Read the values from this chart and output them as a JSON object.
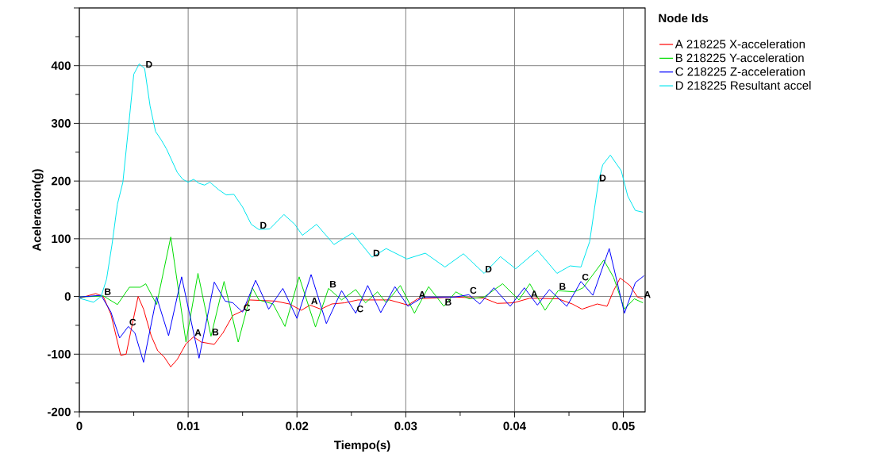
{
  "chart_data": {
    "type": "line",
    "xlabel": "Tiempo(s)",
    "ylabel": "Aceleracion(g)",
    "legend_title": "Node Ids",
    "xlim": [
      0,
      0.052
    ],
    "ylim": [
      -200,
      500
    ],
    "xticks": [
      0,
      0.01,
      0.02,
      0.03,
      0.04,
      0.05
    ],
    "yticks": [
      -200,
      -100,
      0,
      100,
      200,
      300,
      400,
      {
        "value": 500,
        "label": null
      }
    ],
    "grid": true,
    "legend": "top right",
    "line_style": "solid",
    "series": [
      {
        "name": "A 218225 X-acceleration",
        "color": "#ff0000",
        "x": [
          0,
          0.0015,
          0.0022,
          0.0029,
          0.0038,
          0.0043,
          0.0048,
          0.0054,
          0.0059,
          0.0066,
          0.0072,
          0.0078,
          0.0084,
          0.009,
          0.0098,
          0.0105,
          0.0112,
          0.0124,
          0.0132,
          0.0141,
          0.0151,
          0.0156,
          0.0168,
          0.018,
          0.0193,
          0.0204,
          0.0212,
          0.0222,
          0.0232,
          0.0244,
          0.0256,
          0.0285,
          0.0302,
          0.0311,
          0.0345,
          0.0372,
          0.0384,
          0.0399,
          0.0414,
          0.044,
          0.0453,
          0.0462,
          0.0476,
          0.0485,
          0.0491,
          0.0497,
          0.0506,
          0.0513,
          0.0518
        ],
        "values": [
          -3,
          5,
          0,
          -31,
          -102,
          -100,
          -54,
          0,
          -22,
          -68,
          -94,
          -105,
          -122,
          -109,
          -82,
          -70,
          -79,
          -83,
          -63,
          -33,
          -24,
          -6,
          -7,
          -8,
          -13,
          -24,
          -15,
          -22,
          -13,
          -11,
          -6,
          -6,
          -15,
          -4,
          -1,
          -3,
          -12,
          -11,
          -3,
          -4,
          -13,
          -22,
          -13,
          -17,
          10,
          32,
          19,
          -1,
          -4
        ]
      },
      {
        "name": "B 218225 Y-acceleration",
        "color": "#00dd00",
        "x": [
          0,
          0.0022,
          0.0035,
          0.0046,
          0.0056,
          0.0061,
          0.0071,
          0.0084,
          0.0098,
          0.0109,
          0.0121,
          0.0133,
          0.0146,
          0.0159,
          0.0165,
          0.0178,
          0.0189,
          0.0202,
          0.0217,
          0.0229,
          0.0241,
          0.0254,
          0.0263,
          0.0274,
          0.0282,
          0.0295,
          0.0308,
          0.0321,
          0.0335,
          0.0346,
          0.0358,
          0.0372,
          0.0389,
          0.0404,
          0.0414,
          0.0428,
          0.044,
          0.0455,
          0.0463,
          0.0482,
          0.0491,
          0.0501,
          0.051,
          0.0518
        ],
        "values": [
          -1,
          1,
          -14,
          16,
          16,
          22,
          -14,
          103,
          -79,
          40,
          -69,
          26,
          -79,
          15,
          -6,
          -13,
          -52,
          34,
          -53,
          14,
          -6,
          12,
          -11,
          8,
          -11,
          19,
          -29,
          17,
          -17,
          8,
          -4,
          -1,
          22,
          -6,
          22,
          -24,
          10,
          8,
          15,
          63,
          33,
          -22,
          -4,
          -11
        ]
      },
      {
        "name": "C 218225 Z-acceleration",
        "color": "#0000ff",
        "x": [
          0,
          0.002,
          0.0029,
          0.0037,
          0.0045,
          0.0051,
          0.0059,
          0.0071,
          0.0082,
          0.0094,
          0.011,
          0.0124,
          0.0134,
          0.0141,
          0.015,
          0.0162,
          0.0174,
          0.0187,
          0.02,
          0.0213,
          0.0227,
          0.0241,
          0.0254,
          0.0265,
          0.0277,
          0.029,
          0.0302,
          0.0316,
          0.0345,
          0.0358,
          0.0368,
          0.0381,
          0.0396,
          0.0409,
          0.0421,
          0.0432,
          0.0448,
          0.0461,
          0.0472,
          0.0487,
          0.0501,
          0.0511,
          0.0519
        ],
        "values": [
          -1,
          2,
          -27,
          -72,
          -52,
          -63,
          -114,
          -1,
          -68,
          34,
          -107,
          25,
          -8,
          -11,
          -27,
          28,
          -22,
          14,
          -38,
          38,
          -47,
          10,
          -29,
          19,
          -28,
          17,
          -17,
          -1,
          -1,
          3,
          -13,
          15,
          -17,
          15,
          -15,
          12,
          -17,
          26,
          2,
          83,
          -29,
          24,
          36
        ]
      },
      {
        "name": "D 218225 Resultant accel",
        "color": "#00e5ee",
        "x": [
          0,
          0.0013,
          0.002,
          0.0025,
          0.003,
          0.0035,
          0.004,
          0.0045,
          0.005,
          0.0055,
          0.006,
          0.0065,
          0.007,
          0.0075,
          0.008,
          0.009,
          0.0095,
          0.01,
          0.0105,
          0.011,
          0.0115,
          0.012,
          0.0128,
          0.0135,
          0.0142,
          0.015,
          0.0158,
          0.0165,
          0.0175,
          0.0188,
          0.0198,
          0.0205,
          0.0218,
          0.0234,
          0.0251,
          0.0269,
          0.0282,
          0.0301,
          0.0318,
          0.0336,
          0.0353,
          0.0372,
          0.0387,
          0.0401,
          0.0421,
          0.0439,
          0.0451,
          0.0461,
          0.0469,
          0.0477,
          0.0481,
          0.0488,
          0.0498,
          0.0504,
          0.0511,
          0.0518
        ],
        "values": [
          -3,
          -10,
          0,
          30,
          90,
          160,
          198,
          290,
          385,
          403,
          395,
          330,
          286,
          272,
          256,
          215,
          203,
          198,
          203,
          196,
          193,
          198,
          185,
          176,
          177,
          155,
          125,
          116,
          117,
          142,
          125,
          106,
          125,
          90,
          110,
          68,
          83,
          65,
          75,
          51,
          74,
          40,
          69,
          48,
          80,
          40,
          53,
          51,
          95,
          198,
          228,
          245,
          218,
          174,
          149,
          146
        ]
      }
    ],
    "annotations": [
      {
        "text": "D",
        "x": 0.006,
        "y": 395
      },
      {
        "text": "D",
        "x": 0.0165,
        "y": 116
      },
      {
        "text": "D",
        "x": 0.0269,
        "y": 68
      },
      {
        "text": "D",
        "x": 0.0372,
        "y": 40
      },
      {
        "text": "D",
        "x": 0.0477,
        "y": 198
      },
      {
        "text": "A",
        "x": 0.0105,
        "y": -70
      },
      {
        "text": "A",
        "x": 0.0212,
        "y": -15
      },
      {
        "text": "A",
        "x": 0.0311,
        "y": -4
      },
      {
        "text": "A",
        "x": 0.0414,
        "y": -3
      },
      {
        "text": "A",
        "x": 0.0518,
        "y": -4
      },
      {
        "text": "B",
        "x": 0.0022,
        "y": 1
      },
      {
        "text": "B",
        "x": 0.0121,
        "y": -69
      },
      {
        "text": "B",
        "x": 0.0229,
        "y": 14
      },
      {
        "text": "B",
        "x": 0.0335,
        "y": -17
      },
      {
        "text": "B",
        "x": 0.044,
        "y": 10
      },
      {
        "text": "C",
        "x": 0.0045,
        "y": -52
      },
      {
        "text": "C",
        "x": 0.015,
        "y": -27
      },
      {
        "text": "C",
        "x": 0.0254,
        "y": -29
      },
      {
        "text": "C",
        "x": 0.0358,
        "y": 3
      },
      {
        "text": "C",
        "x": 0.0461,
        "y": 26
      }
    ]
  }
}
